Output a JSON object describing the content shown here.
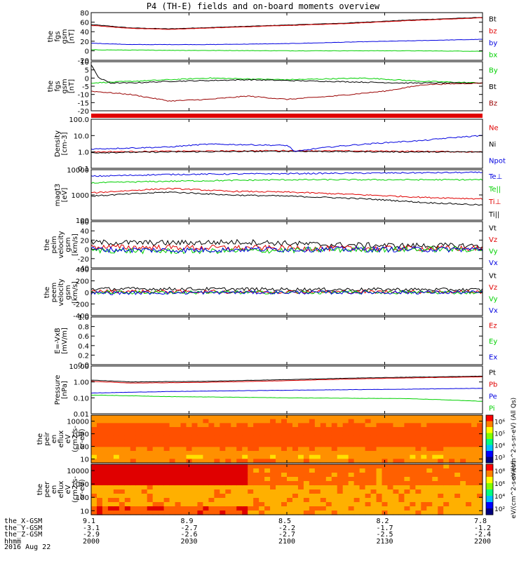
{
  "title": "P4 (TH-E) fields and on-board moments overview",
  "date_label": "2016 Aug 22",
  "colors": {
    "black": "#000000",
    "red": "#e00000",
    "green": "#00d000",
    "blue": "#0000e0",
    "darkred": "#990000"
  },
  "chart_data": [
    {
      "type": "line",
      "panel": 1,
      "ylabel": [
        "the",
        "fgs",
        "gsm",
        "[nT]"
      ],
      "ylim": [
        -20,
        80
      ],
      "yticks": [
        -20,
        0,
        20,
        40,
        60,
        80
      ],
      "series": [
        {
          "name": "Bt",
          "color": "black",
          "x": [
            0,
            0.1,
            0.2,
            0.35,
            0.5,
            0.65,
            0.8,
            1.0
          ],
          "values": [
            55,
            48,
            46,
            50,
            54,
            58,
            64,
            70
          ]
        },
        {
          "name": "bz",
          "color": "red",
          "x": [
            0,
            0.1,
            0.2,
            0.35,
            0.5,
            0.65,
            0.8,
            1.0
          ],
          "values": [
            53,
            47,
            45,
            49,
            53,
            57,
            63,
            69
          ]
        },
        {
          "name": "by",
          "color": "blue",
          "x": [
            0,
            0.1,
            0.3,
            0.5,
            0.7,
            1.0
          ],
          "values": [
            16,
            13,
            13,
            15,
            19,
            24
          ]
        },
        {
          "name": "bx",
          "color": "green",
          "x": [
            0,
            0.2,
            0.5,
            0.8,
            1.0
          ],
          "values": [
            2,
            1,
            0,
            0,
            -1
          ]
        }
      ]
    },
    {
      "type": "line",
      "panel": 2,
      "ylabel": [
        "the",
        "fgs",
        "gsm",
        "[nT]"
      ],
      "ylim": [
        -20,
        10
      ],
      "yticks": [
        -20,
        -15,
        -10,
        -5,
        0,
        5,
        10
      ],
      "series": [
        {
          "name": "By",
          "color": "green",
          "x": [
            0,
            0.1,
            0.3,
            0.5,
            0.7,
            0.85,
            1.0
          ],
          "values": [
            -3,
            -2,
            0,
            -1,
            0,
            -2,
            -3
          ]
        },
        {
          "name": "Bt",
          "color": "black",
          "x": [
            0,
            0.02,
            0.05,
            0.1,
            0.2,
            0.4,
            0.6,
            0.8,
            1.0
          ],
          "values": [
            8,
            0,
            -3,
            -3,
            -2,
            -1,
            -2,
            -3,
            -3
          ]
        },
        {
          "name": "Bz",
          "color": "darkred",
          "x": [
            0,
            0.1,
            0.2,
            0.3,
            0.4,
            0.5,
            0.62,
            0.75,
            0.85,
            1.0
          ],
          "values": [
            -8,
            -10,
            -14,
            -13,
            -11,
            -13,
            -11,
            -8,
            -4,
            -3
          ]
        }
      ]
    },
    {
      "type": "line",
      "panel": 3,
      "ylabel": [
        "Density",
        "[cm-3]"
      ],
      "ylim": [
        0.1,
        100
      ],
      "yscale": "log",
      "yticks": [
        0.1,
        1.0,
        10.0,
        100.0
      ],
      "yticklabels": [
        "0.1",
        "1.0",
        "10.0",
        "100.0"
      ],
      "series": [
        {
          "name": "Ne",
          "color": "red",
          "x": [
            0,
            0.2,
            0.5,
            0.8,
            1.0
          ],
          "values": [
            1.0,
            1.1,
            1.2,
            1.1,
            1.0
          ]
        },
        {
          "name": "Ni",
          "color": "black",
          "x": [
            0,
            0.2,
            0.5,
            0.8,
            1.0
          ],
          "values": [
            0.9,
            1.0,
            1.1,
            1.0,
            1.0
          ]
        },
        {
          "name": "Npot",
          "color": "blue",
          "x": [
            0,
            0.2,
            0.3,
            0.5,
            0.52,
            0.7,
            0.85,
            1.0
          ],
          "values": [
            1.5,
            2.0,
            3.0,
            2.5,
            1.0,
            3.0,
            5.0,
            10.0
          ]
        }
      ]
    },
    {
      "type": "line",
      "panel": 4,
      "ylabel": [
        "magt3",
        "[eV]"
      ],
      "ylim": [
        100,
        10000
      ],
      "yscale": "log",
      "yticks": [
        100,
        1000,
        10000
      ],
      "yticklabels": [
        "100",
        "1000",
        "10000"
      ],
      "series": [
        {
          "name": "Te⊥",
          "color": "blue",
          "x": [
            0,
            0.2,
            0.5,
            0.8,
            1.0
          ],
          "values": [
            5500,
            6500,
            7000,
            7500,
            7800
          ]
        },
        {
          "name": "Te||",
          "color": "green",
          "x": [
            0,
            0.2,
            0.5,
            0.8,
            1.0
          ],
          "values": [
            3000,
            3500,
            4000,
            4000,
            4000
          ]
        },
        {
          "name": "Ti⊥",
          "color": "red",
          "x": [
            0,
            0.2,
            0.35,
            0.5,
            0.7,
            0.85,
            1.0
          ],
          "values": [
            1200,
            1800,
            1400,
            1300,
            1000,
            800,
            700
          ]
        },
        {
          "name": "Ti||",
          "color": "black",
          "x": [
            0,
            0.2,
            0.35,
            0.5,
            0.7,
            0.85,
            1.0
          ],
          "values": [
            900,
            1300,
            1000,
            900,
            700,
            500,
            400
          ]
        }
      ]
    },
    {
      "type": "line",
      "panel": 5,
      "ylabel": [
        "the",
        "peim",
        "velocity",
        "gsm",
        "[km/s]"
      ],
      "ylim": [
        -40,
        60
      ],
      "yticks": [
        -40,
        -20,
        0,
        20,
        40,
        60
      ],
      "series": [
        {
          "name": "Vt",
          "color": "black",
          "x": [
            0,
            0.2,
            0.4,
            0.6,
            0.8,
            1.0
          ],
          "values": [
            15,
            14,
            16,
            10,
            8,
            8
          ]
        },
        {
          "name": "Vz",
          "color": "red",
          "x": [
            0,
            0.2,
            0.4,
            0.6,
            0.8,
            1.0
          ],
          "values": [
            5,
            4,
            3,
            2,
            2,
            2
          ]
        },
        {
          "name": "Vy",
          "color": "green",
          "x": [
            0,
            0.2,
            0.4,
            0.6,
            0.8,
            1.0
          ],
          "values": [
            -2,
            -4,
            -3,
            -1,
            0,
            0
          ]
        },
        {
          "name": "Vx",
          "color": "blue",
          "x": [
            0,
            0.2,
            0.4,
            0.6,
            0.8,
            1.0
          ],
          "values": [
            0,
            -2,
            0,
            0,
            0,
            0
          ]
        }
      ]
    },
    {
      "type": "line",
      "panel": 6,
      "ylabel": [
        "the",
        "peem",
        "velocity",
        "gsm",
        "[km/s]"
      ],
      "ylim": [
        -400,
        400
      ],
      "yticks": [
        -400,
        -200,
        0,
        200,
        400
      ],
      "series": [
        {
          "name": "Vt",
          "color": "black",
          "x": [
            0,
            0.2,
            0.4,
            0.6,
            0.8,
            1.0
          ],
          "values": [
            60,
            60,
            55,
            50,
            50,
            45
          ]
        },
        {
          "name": "Vz",
          "color": "red",
          "x": [
            0,
            0.2,
            0.4,
            0.6,
            0.8,
            1.0
          ],
          "values": [
            20,
            15,
            10,
            10,
            10,
            10
          ]
        },
        {
          "name": "Vy",
          "color": "green",
          "x": [
            0,
            0.2,
            0.4,
            0.6,
            0.8,
            1.0
          ],
          "values": [
            0,
            0,
            0,
            0,
            0,
            0
          ]
        },
        {
          "name": "Vx",
          "color": "blue",
          "x": [
            0,
            0.2,
            0.4,
            0.6,
            0.8,
            1.0
          ],
          "values": [
            -10,
            -5,
            0,
            0,
            0,
            0
          ]
        }
      ]
    },
    {
      "type": "line",
      "panel": 7,
      "ylabel": [
        "E=-VxB",
        "[mV/m]"
      ],
      "ylim": [
        0,
        1
      ],
      "yticks": [
        0,
        0.2,
        0.4,
        0.6,
        0.8,
        1.0
      ],
      "yticklabels": [
        "0.0",
        "0.2",
        "0.4",
        "0.6",
        "0.8",
        "1.0"
      ],
      "series": [
        {
          "name": "Ez",
          "color": "red",
          "x": [],
          "values": []
        },
        {
          "name": "Ey",
          "color": "green",
          "x": [],
          "values": []
        },
        {
          "name": "Ex",
          "color": "blue",
          "x": [],
          "values": []
        }
      ]
    },
    {
      "type": "line",
      "panel": 8,
      "ylabel": [
        "Pressure",
        "[nPa]"
      ],
      "ylim": [
        0.01,
        10
      ],
      "yscale": "log",
      "yticks": [
        0.01,
        0.1,
        1,
        10
      ],
      "yticklabels": [
        "0.01",
        "0.10",
        "1.00",
        "10.00"
      ],
      "series": [
        {
          "name": "Pt",
          "color": "black",
          "x": [
            0,
            0.1,
            0.3,
            0.5,
            0.7,
            1.0
          ],
          "values": [
            1.3,
            1.0,
            1.1,
            1.4,
            1.8,
            2.3
          ]
        },
        {
          "name": "Pb",
          "color": "red",
          "x": [
            0,
            0.1,
            0.3,
            0.5,
            0.7,
            1.0
          ],
          "values": [
            1.1,
            0.85,
            0.95,
            1.2,
            1.6,
            2.1
          ]
        },
        {
          "name": "Pe",
          "color": "blue",
          "x": [
            0,
            0.2,
            0.5,
            0.8,
            1.0
          ],
          "values": [
            0.2,
            0.25,
            0.3,
            0.35,
            0.4
          ]
        },
        {
          "name": "Pi",
          "color": "green",
          "x": [
            0,
            0.2,
            0.5,
            0.8,
            1.0
          ],
          "values": [
            0.15,
            0.12,
            0.1,
            0.09,
            0.06
          ]
        }
      ]
    },
    {
      "type": "heatmap",
      "panel": 9,
      "ylabel": [
        "the",
        "peir",
        "en",
        "eflux",
        "eV",
        "(cm2-s-",
        "sr-eV)"
      ],
      "yscale": "log",
      "ylim": [
        5,
        30000
      ],
      "yticks": [
        10,
        100,
        1000,
        10000
      ],
      "yticklabels": [
        "10",
        "100",
        "1000",
        "10000"
      ],
      "colorbar_ticks": [
        "10³",
        "10⁴",
        "10⁵",
        "10⁶"
      ],
      "colorbar_label": "eV/(cm^2-s-sr-eV) (All Qs)"
    },
    {
      "type": "heatmap",
      "panel": 10,
      "ylabel": [
        "the",
        "peer",
        "en",
        "eflux",
        "eV",
        "(cm2-s-",
        "sr-eV)"
      ],
      "yscale": "log",
      "ylim": [
        5,
        30000
      ],
      "yticks": [
        10,
        100,
        1000,
        10000
      ],
      "yticklabels": [
        "10",
        "100",
        "1000",
        "10000"
      ],
      "colorbar_ticks": [
        "10²",
        "10⁴",
        "10⁶",
        "10⁸"
      ],
      "colorbar_label": "eV/(cm^2-s-sr-eV)"
    }
  ],
  "legends": [
    [
      "Bt",
      "bz",
      "by",
      "bx"
    ],
    [
      "By",
      "Bt",
      "Bz"
    ],
    [
      "Ne",
      "Ni",
      "Npot"
    ],
    [
      "Te⊥",
      "Te||",
      "Ti⊥",
      "Ti||"
    ],
    [
      "Vt",
      "Vz",
      "Vy",
      "Vx"
    ],
    [
      "Vt",
      "Vz",
      "Vy",
      "Vx"
    ],
    [
      "Ez",
      "Ey",
      "Ex"
    ],
    [
      "Pt",
      "Pb",
      "Pe",
      "Pi"
    ]
  ],
  "ephemeris": {
    "row_labels": [
      "the_X-GSM",
      "the_Y-GSM",
      "the_Z-GSM",
      "hhmm"
    ],
    "columns": [
      {
        "values": [
          "9.1",
          "-3.1",
          "-2.9",
          "2000"
        ]
      },
      {
        "values": [
          "8.9",
          "-2.7",
          "-2.6",
          "2030"
        ]
      },
      {
        "values": [
          "8.5",
          "-2.2",
          "-2.7",
          "2100"
        ]
      },
      {
        "values": [
          "8.2",
          "-1.7",
          "-2.5",
          "2130"
        ]
      },
      {
        "values": [
          "7.8",
          "-1.2",
          "-2.4",
          "2200"
        ]
      }
    ]
  }
}
